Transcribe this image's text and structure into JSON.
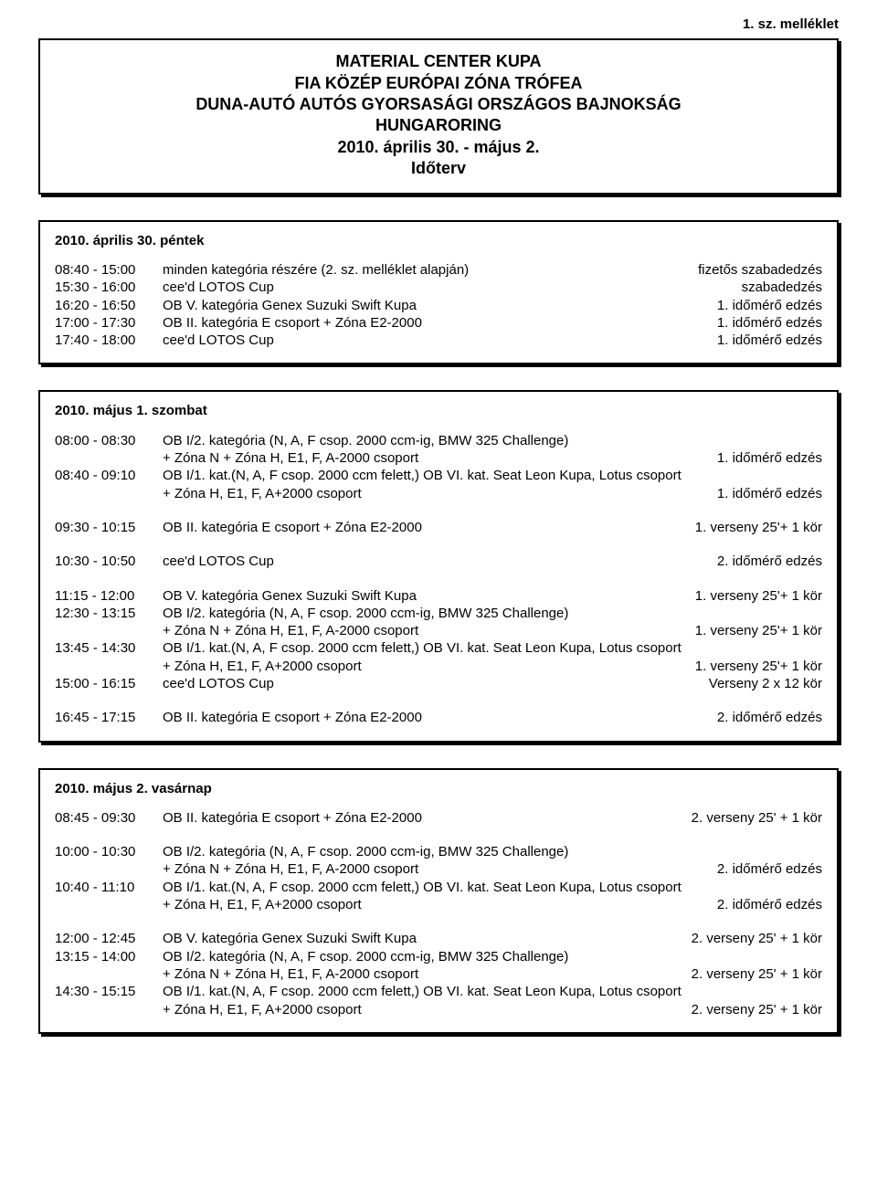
{
  "header_right": "1. sz. melléklet",
  "title": {
    "l1": "MATERIAL CENTER KUPA",
    "l2": "FIA KÖZÉP EURÓPAI ZÓNA TRÓFEA",
    "l3": "DUNA-AUTÓ AUTÓS GYORSASÁGI ORSZÁGOS BAJNOKSÁG",
    "l4": "HUNGARORING",
    "l5": "2010. április 30. - május 2.",
    "l6": "Időterv"
  },
  "box1": {
    "head": "2010. április 30. péntek",
    "rows": [
      {
        "t": "08:40 - 15:00",
        "m": "minden kategória részére (2. sz. melléklet alapján)",
        "r": "fizetős szabadedzés"
      },
      {
        "t": "15:30 - 16:00",
        "m": "cee'd LOTOS Cup",
        "r": "szabadedzés"
      },
      {
        "t": "16:20 - 16:50",
        "m": "OB V. kategória Genex Suzuki Swift Kupa",
        "r": "1. időmérő edzés"
      },
      {
        "t": "17:00 - 17:30",
        "m": "OB II. kategória E csoport + Zóna E2-2000",
        "r": "1. időmérő edzés"
      },
      {
        "t": "17:40 - 18:00",
        "m": "cee'd LOTOS Cup",
        "r": "1. időmérő edzés"
      }
    ]
  },
  "box2": {
    "head": "2010. május 1. szombat",
    "rows": [
      {
        "t": "08:00 - 08:30",
        "m": "OB I/2. kategória (N, A, F csop. 2000 ccm-ig, BMW 325 Challenge)",
        "r": ""
      },
      {
        "t": "",
        "m": "+ Zóna N + Zóna H, E1, F, A-2000 csoport",
        "r": "1. időmérő edzés"
      },
      {
        "t": "08:40 - 09:10",
        "m": "OB I/1. kat.(N, A, F csop. 2000 ccm felett,) OB VI. kat. Seat Leon Kupa, Lotus csoport",
        "r": ""
      },
      {
        "t": "",
        "m": "+ Zóna H, E1, F, A+2000 csoport",
        "r": "1. időmérő edzés"
      },
      {
        "gap": "md"
      },
      {
        "t": "09:30 - 10:15",
        "m": "OB II. kategória E csoport + Zóna E2-2000",
        "r": "1. verseny 25'+ 1 kör"
      },
      {
        "gap": "md"
      },
      {
        "t": "10:30 - 10:50",
        "m": "cee'd LOTOS Cup",
        "r": "2. időmérő edzés"
      },
      {
        "gap": "md"
      },
      {
        "t": "11:15 - 12:00",
        "m": "OB V. kategória Genex Suzuki Swift Kupa",
        "r": "1. verseny 25'+ 1 kör"
      },
      {
        "t": "12:30 - 13:15",
        "m": "OB I/2. kategória (N, A, F csop. 2000 ccm-ig, BMW 325 Challenge)",
        "r": ""
      },
      {
        "t": "",
        "m": "+ Zóna N + Zóna H, E1, F, A-2000 csoport",
        "r": "1. verseny 25'+ 1 kör"
      },
      {
        "t": "13:45 - 14:30",
        "m": "OB I/1. kat.(N, A, F csop. 2000 ccm felett,) OB VI. kat. Seat Leon Kupa, Lotus csoport",
        "r": ""
      },
      {
        "t": "",
        "m": "+ Zóna H, E1, F, A+2000 csoport",
        "r": "1. verseny 25'+ 1 kör"
      },
      {
        "t": "15:00 - 16:15",
        "m": "cee'd LOTOS Cup",
        "r": "Verseny 2 x 12 kör"
      },
      {
        "gap": "md"
      },
      {
        "t": "16:45 - 17:15",
        "m": "OB II. kategória E csoport + Zóna E2-2000",
        "r": "2. időmérő edzés"
      }
    ]
  },
  "box3": {
    "head": "2010. május 2. vasárnap",
    "rows": [
      {
        "t": "08:45 - 09:30",
        "m": "OB II. kategória E csoport + Zóna E2-2000",
        "r": "2. verseny 25' + 1 kör"
      },
      {
        "gap": "md"
      },
      {
        "t": "10:00 - 10:30",
        "m": "OB I/2. kategória (N, A, F csop. 2000 ccm-ig, BMW 325 Challenge)",
        "r": ""
      },
      {
        "t": "",
        "m": "+ Zóna N + Zóna H, E1, F, A-2000 csoport",
        "r": "2. időmérő edzés"
      },
      {
        "t": "10:40 - 11:10",
        "m": "OB I/1. kat.(N, A, F csop. 2000 ccm felett,) OB VI. kat. Seat Leon Kupa, Lotus csoport",
        "r": ""
      },
      {
        "t": "",
        "m": "+ Zóna H, E1, F, A+2000 csoport",
        "r": "2. időmérő edzés"
      },
      {
        "gap": "md"
      },
      {
        "t": "12:00 - 12:45",
        "m": "OB V. kategória Genex Suzuki Swift Kupa",
        "r": "2. verseny 25' + 1 kör"
      },
      {
        "t": "13:15 - 14:00",
        "m": "OB I/2. kategória (N, A, F csop. 2000 ccm-ig, BMW 325 Challenge)",
        "r": ""
      },
      {
        "t": "",
        "m": "+ Zóna N + Zóna H, E1, F, A-2000 csoport",
        "r": "2. verseny 25' + 1 kör"
      },
      {
        "t": "14:30 - 15:15",
        "m": "OB I/1. kat.(N, A, F csop. 2000 ccm felett,) OB VI. kat. Seat Leon Kupa, Lotus csoport",
        "r": ""
      },
      {
        "t": "",
        "m": "+ Zóna H, E1, F, A+2000 csoport",
        "r": "2. verseny 25' + 1 kör"
      }
    ]
  }
}
